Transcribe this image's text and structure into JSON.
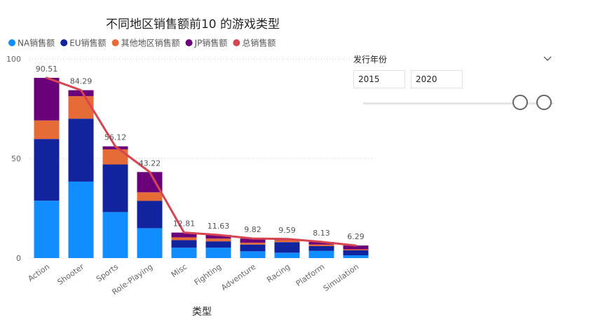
{
  "chart_data": {
    "type": "bar",
    "stacked": true,
    "title": "不同地区销售额前10 的游戏类型",
    "xlabel": "类型",
    "ylabel": "",
    "ylim": [
      0,
      100
    ],
    "yticks": [
      0,
      50,
      100
    ],
    "grid": true,
    "legend_position": "top-left",
    "categories": [
      "Action",
      "Shooter",
      "Sports",
      "Role-Playing",
      "Misc",
      "Fighting",
      "Adventure",
      "Racing",
      "Platform",
      "Simulation"
    ],
    "series": [
      {
        "name": "NA销售额",
        "color": "#118DFF",
        "values": [
          28.8,
          38.4,
          23.1,
          15.0,
          5.2,
          5.2,
          3.4,
          2.7,
          3.6,
          1.4
        ]
      },
      {
        "name": "EU销售额",
        "color": "#12239E",
        "values": [
          31.0,
          31.6,
          23.9,
          13.7,
          3.8,
          3.2,
          3.4,
          5.3,
          2.4,
          2.5
        ]
      },
      {
        "name": "其他地区销售额",
        "color": "#E66C37",
        "values": [
          9.3,
          11.3,
          7.6,
          4.3,
          1.4,
          1.4,
          0.9,
          1.0,
          0.8,
          0.5
        ]
      },
      {
        "name": "JP销售额",
        "color": "#6B007B",
        "values": [
          21.4,
          3.0,
          1.5,
          10.2,
          2.4,
          1.8,
          2.1,
          0.6,
          1.3,
          1.9
        ]
      }
    ],
    "line_series": {
      "name": "总销售额",
      "color": "#D64550",
      "values": [
        90.51,
        84.29,
        56.12,
        43.22,
        12.81,
        11.63,
        9.82,
        9.59,
        8.13,
        6.29
      ]
    },
    "data_labels": [
      "90.51",
      "84.29",
      "56.12",
      "43.22",
      "12.81",
      "11.63",
      "9.82",
      "9.59",
      "8.13",
      "6.29"
    ]
  },
  "slicer": {
    "title": "发行年份",
    "start": "2015",
    "end": "2020",
    "chevron_icon": "chevron-down-icon",
    "handle_icon": "slider-handle-icon"
  }
}
